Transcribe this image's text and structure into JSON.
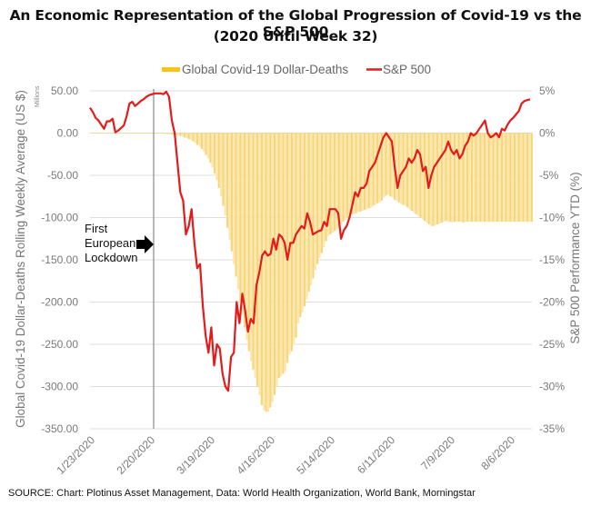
{
  "chart_data": {
    "type": "bar+line",
    "title": "An Economic Representation of the Global Progression of Covid-19 vs the S&P 500",
    "subtitle": "(2020 Until Week 32)",
    "legend": {
      "placement": "top-center",
      "entries": [
        {
          "name": "Global Covid-19 Dollar-Deaths",
          "type": "bar",
          "color": "#f5c518"
        },
        {
          "name": "S&P 500",
          "type": "line",
          "color": "#e31b1b"
        }
      ]
    },
    "y_left": {
      "label": "Global Covid-19 Dollar-Deaths Rolling Weekly Average (US $)",
      "unit_note": "Millions",
      "range": [
        -350,
        50
      ],
      "ticks": [
        "50.00",
        "0.00",
        "-50.00",
        "-100.00",
        "-150.00",
        "-200.00",
        "-250.00",
        "-300.00",
        "-350.00"
      ]
    },
    "y_right": {
      "label": "S&P 500 Performance YTD (%)",
      "range": [
        -35,
        5
      ],
      "ticks": [
        "5%",
        "0%",
        "-5%",
        "-10%",
        "-15%",
        "-20%",
        "-25%",
        "-30%",
        "-35%"
      ]
    },
    "x": {
      "start": "2020-01-23",
      "end": "2020-08-12",
      "ticks": [
        "1/23/2020",
        "2/20/2020",
        "3/19/2020",
        "4/16/2020",
        "5/14/2020",
        "6/11/2020",
        "7/9/2020",
        "8/6/2020"
      ]
    },
    "grid": true,
    "annotation": {
      "lines": [
        "First",
        "European",
        "Lockdown"
      ],
      "arrow": "right",
      "marker_date": "2020-02-20"
    },
    "series": [
      {
        "name": "Global Covid-19 Dollar-Deaths",
        "axis": "left",
        "type": "bar",
        "day_offset_start": 0,
        "values": [
          0,
          0,
          0,
          0,
          0,
          0,
          0,
          0,
          0,
          0,
          0,
          0,
          0,
          0,
          0,
          0,
          0,
          0,
          0,
          0,
          0,
          0,
          0,
          0,
          0,
          0,
          0,
          0,
          0,
          0,
          0,
          0,
          -0.5,
          -0.5,
          -0.5,
          -1,
          -1,
          -1,
          -1.5,
          -2,
          -2.5,
          -3,
          -3.5,
          -4,
          -5,
          -6,
          -7,
          -8,
          -10,
          -12,
          -14,
          -16,
          -19,
          -22,
          -26,
          -30,
          -35,
          -41,
          -48,
          -56,
          -65,
          -75,
          -86,
          -98,
          -112,
          -126,
          -140,
          -155,
          -170,
          -185,
          -200,
          -215,
          -230,
          -245,
          -258,
          -270,
          -280,
          -290,
          -300,
          -310,
          -322,
          -328,
          -330,
          -330,
          -325,
          -318,
          -310,
          -300,
          -290,
          -288,
          -285,
          -282,
          -272,
          -262,
          -258,
          -250,
          -242,
          -225,
          -218,
          -212,
          -205,
          -197,
          -188,
          -180,
          -172,
          -162,
          -155,
          -148,
          -142,
          -135,
          -128,
          -122,
          -120,
          -118,
          -116,
          -115,
          -112,
          -108,
          -105,
          -103,
          -100,
          -98,
          -96,
          -96,
          -95,
          -93,
          -93,
          -92,
          -91,
          -90,
          -89,
          -88,
          -86,
          -85,
          -83,
          -82,
          -80,
          -76,
          -74,
          -73,
          -75,
          -76,
          -79,
          -80,
          -82,
          -84,
          -85,
          -86,
          -88,
          -90,
          -92,
          -94,
          -96,
          -98,
          -100,
          -102,
          -104,
          -106,
          -108,
          -110,
          -110,
          -109,
          -108,
          -107,
          -106,
          -105,
          -104,
          -105,
          -105,
          -106,
          -105,
          -105,
          -105,
          -105,
          -106,
          -105,
          -105,
          -105,
          -105,
          -105,
          -105,
          -105,
          -105,
          -105,
          -105,
          -105,
          -105,
          -105,
          -105,
          -105,
          -105,
          -105,
          -105,
          -105,
          -105,
          -105,
          -105,
          -105,
          -105,
          -105,
          -105,
          -105,
          -105,
          -105,
          -105,
          -105,
          -105,
          -105,
          -105,
          -105,
          -105
        ]
      },
      {
        "name": "S&P 500",
        "axis": "right",
        "type": "line",
        "points": [
          [
            0,
            3.0
          ],
          [
            1,
            2.5
          ],
          [
            2,
            1.8
          ],
          [
            3,
            1.5
          ],
          [
            4,
            1.0
          ],
          [
            5,
            0.5
          ],
          [
            6,
            1.4
          ],
          [
            7,
            1.4
          ],
          [
            8,
            1.7
          ],
          [
            9,
            0.1
          ],
          [
            10,
            0.3
          ],
          [
            11,
            0.6
          ],
          [
            12,
            0.9
          ],
          [
            13,
            2.0
          ],
          [
            14,
            3.5
          ],
          [
            15,
            3.7
          ],
          [
            16,
            3.2
          ],
          [
            17,
            3.5
          ],
          [
            18,
            3.8
          ],
          [
            19,
            4.0
          ],
          [
            20,
            4.3
          ],
          [
            21,
            4.5
          ],
          [
            22,
            4.6
          ],
          [
            23,
            4.7
          ],
          [
            24,
            4.7
          ],
          [
            25,
            4.7
          ],
          [
            26,
            4.6
          ],
          [
            27,
            4.9
          ],
          [
            28,
            4.3
          ],
          [
            29,
            1.5
          ],
          [
            30,
            0.0
          ],
          [
            31,
            -3.5
          ],
          [
            32,
            -7.0
          ],
          [
            33,
            -8.0
          ],
          [
            34,
            -12.0
          ],
          [
            35,
            -11.0
          ],
          [
            36,
            -9.0
          ],
          [
            37,
            -13.0
          ],
          [
            38,
            -16.0
          ],
          [
            39,
            -15.5
          ],
          [
            40,
            -20.5
          ],
          [
            41,
            -24.0
          ],
          [
            42,
            -26.0
          ],
          [
            43,
            -23.0
          ],
          [
            44,
            -27.5
          ],
          [
            45,
            -25.0
          ],
          [
            46,
            -25.5
          ],
          [
            47,
            -28.5
          ],
          [
            48,
            -30.0
          ],
          [
            49,
            -30.5
          ],
          [
            50,
            -26.5
          ],
          [
            51,
            -26.0
          ],
          [
            52,
            -20.0
          ],
          [
            53,
            -22.5
          ],
          [
            54,
            -19.0
          ],
          [
            55,
            -21.0
          ],
          [
            56,
            -23.5
          ],
          [
            57,
            -22.0
          ],
          [
            58,
            -22.5
          ],
          [
            59,
            -18.0
          ],
          [
            60,
            -16.5
          ],
          [
            61,
            -14.5
          ],
          [
            62,
            -14.0
          ],
          [
            63,
            -14.5
          ],
          [
            64,
            -14.3
          ],
          [
            65,
            -12.5
          ],
          [
            66,
            -13.8
          ],
          [
            67,
            -12.0
          ],
          [
            68,
            -12.3
          ],
          [
            69,
            -13.0
          ],
          [
            70,
            -15.0
          ],
          [
            71,
            -13.0
          ],
          [
            72,
            -13.0
          ],
          [
            73,
            -12.0
          ],
          [
            74,
            -11.5
          ],
          [
            75,
            -11.0
          ],
          [
            76,
            -11.3
          ],
          [
            77,
            -9.5
          ],
          [
            78,
            -10.5
          ],
          [
            79,
            -12.0
          ],
          [
            80,
            -11.8
          ],
          [
            81,
            -11.6
          ],
          [
            82,
            -11.5
          ],
          [
            83,
            -10.5
          ],
          [
            84,
            -11.0
          ],
          [
            85,
            -9.0
          ],
          [
            86,
            -9.0
          ],
          [
            87,
            -9.0
          ],
          [
            88,
            -9.5
          ],
          [
            89,
            -12.5
          ],
          [
            90,
            -11.5
          ],
          [
            91,
            -11.0
          ],
          [
            92,
            -10.0
          ],
          [
            93,
            -8.5
          ],
          [
            94,
            -7.0
          ],
          [
            95,
            -7.5
          ],
          [
            96,
            -6.5
          ],
          [
            97,
            -6.5
          ],
          [
            98,
            -6.0
          ],
          [
            99,
            -4.5
          ],
          [
            100,
            -4.0
          ],
          [
            101,
            -3.5
          ],
          [
            102,
            -2.5
          ],
          [
            103,
            -1.5
          ],
          [
            104,
            -0.5
          ],
          [
            105,
            0.0
          ],
          [
            106,
            -0.5
          ],
          [
            107,
            -1.0
          ],
          [
            108,
            -4.0
          ],
          [
            109,
            -6.5
          ],
          [
            110,
            -5.0
          ],
          [
            111,
            -4.5
          ],
          [
            112,
            -4.0
          ],
          [
            113,
            -3.0
          ],
          [
            114,
            -3.5
          ],
          [
            115,
            -3.0
          ],
          [
            116,
            -2.0
          ],
          [
            117,
            -2.5
          ],
          [
            118,
            -4.5
          ],
          [
            119,
            -4.0
          ],
          [
            120,
            -6.5
          ],
          [
            121,
            -5.0
          ],
          [
            122,
            -4.0
          ],
          [
            123,
            -3.5
          ],
          [
            124,
            -3.0
          ],
          [
            125,
            -2.5
          ],
          [
            126,
            -2.0
          ],
          [
            127,
            -1.0
          ],
          [
            128,
            -2.0
          ],
          [
            129,
            -2.5
          ],
          [
            130,
            -2.0
          ],
          [
            131,
            -3.0
          ],
          [
            132,
            -2.5
          ],
          [
            133,
            -1.5
          ],
          [
            134,
            -1.0
          ],
          [
            135,
            0.0
          ],
          [
            136,
            -0.3
          ],
          [
            137,
            0.0
          ],
          [
            138,
            0.5
          ],
          [
            139,
            1.0
          ],
          [
            140,
            1.5
          ],
          [
            141,
            0.0
          ],
          [
            142,
            -0.5
          ],
          [
            143,
            -0.3
          ],
          [
            144,
            0.0
          ],
          [
            145,
            -0.5
          ],
          [
            146,
            0.5
          ],
          [
            147,
            0.3
          ],
          [
            148,
            1.0
          ],
          [
            149,
            1.5
          ],
          [
            150,
            1.8
          ],
          [
            151,
            2.2
          ],
          [
            152,
            2.6
          ],
          [
            153,
            3.5
          ],
          [
            154,
            3.8
          ],
          [
            155,
            3.9
          ],
          [
            156,
            4.0
          ]
        ],
        "x_units": "days from 2020-01-23 (approx., trading-day spacing compressed)"
      }
    ]
  },
  "source": "SOURCE: Chart: Plotinus Asset Management, Data: World Health Organization, World Bank, Morningstar"
}
